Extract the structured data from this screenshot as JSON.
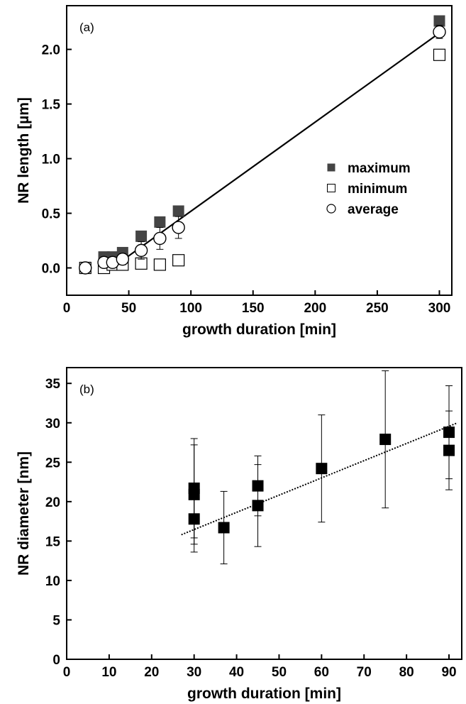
{
  "chart_data": [
    {
      "type": "scatter",
      "panel_label": "(a)",
      "xlabel": "growth duration [min]",
      "ylabel": "NR length [µm]",
      "xlim": [
        0,
        310
      ],
      "ylim": [
        -0.25,
        2.4
      ],
      "xticks": [
        0,
        50,
        100,
        150,
        200,
        250,
        300
      ],
      "yticks": [
        0.0,
        0.5,
        1.0,
        1.5,
        2.0
      ],
      "ytick_labels": [
        "0.0",
        "0.5",
        "1.0",
        "1.5",
        "2.0"
      ],
      "legend_position": "bottom-right",
      "series": [
        {
          "name": "maximum",
          "marker": "filled-square",
          "color": "#444444",
          "x": [
            15,
            30,
            37,
            45,
            60,
            75,
            90,
            300
          ],
          "y": [
            0.0,
            0.1,
            0.1,
            0.14,
            0.29,
            0.42,
            0.52,
            2.26
          ]
        },
        {
          "name": "minimum",
          "marker": "open-square",
          "color": "#000000",
          "x": [
            15,
            30,
            37,
            45,
            60,
            75,
            90,
            300
          ],
          "y": [
            0.0,
            0.0,
            0.03,
            0.03,
            0.04,
            0.03,
            0.07,
            1.95
          ]
        },
        {
          "name": "average",
          "marker": "open-circle",
          "color": "#000000",
          "x": [
            15,
            30,
            37,
            45,
            60,
            75,
            90,
            300
          ],
          "y": [
            0.0,
            0.05,
            0.05,
            0.08,
            0.16,
            0.27,
            0.37,
            2.16
          ],
          "yerr": [
            0.0,
            0.04,
            0.04,
            0.05,
            0.08,
            0.1,
            0.1,
            0.06
          ]
        }
      ],
      "fit_line": {
        "style": "solid",
        "x": [
          45,
          300
        ],
        "y": [
          0.07,
          2.15
        ]
      }
    },
    {
      "type": "scatter",
      "panel_label": "(b)",
      "xlabel": "growth duration [min]",
      "ylabel": "NR diameter [nm]",
      "xlim": [
        0,
        93
      ],
      "ylim": [
        0,
        37
      ],
      "xticks": [
        0,
        10,
        20,
        30,
        40,
        50,
        60,
        70,
        80,
        90
      ],
      "yticks": [
        0,
        5,
        10,
        15,
        20,
        25,
        30,
        35
      ],
      "series": [
        {
          "marker": "filled-square",
          "color": "#000000",
          "x": [
            30,
            30,
            30,
            37,
            45,
            45,
            60,
            75,
            90,
            90
          ],
          "y": [
            21.7,
            20.9,
            17.8,
            16.7,
            22.0,
            19.5,
            24.2,
            27.9,
            28.8,
            26.5
          ],
          "yerr": [
            6.3,
            6.3,
            4.2,
            4.6,
            3.8,
            5.2,
            6.8,
            8.7,
            5.9,
            5.0
          ]
        }
      ],
      "fit_line": {
        "style": "dotted",
        "x": [
          27,
          92
        ],
        "y": [
          15.8,
          30.0
        ]
      }
    }
  ]
}
